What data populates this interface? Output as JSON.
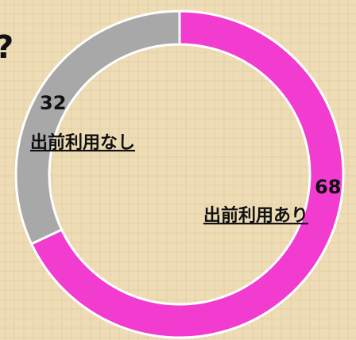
{
  "chart_data": {
    "type": "donut",
    "annotation": "?",
    "categories": [
      "出前利用あり",
      "出前利用なし"
    ],
    "values": [
      68,
      32
    ],
    "colors": [
      "#f23cd0",
      "#a8a8a8"
    ]
  }
}
